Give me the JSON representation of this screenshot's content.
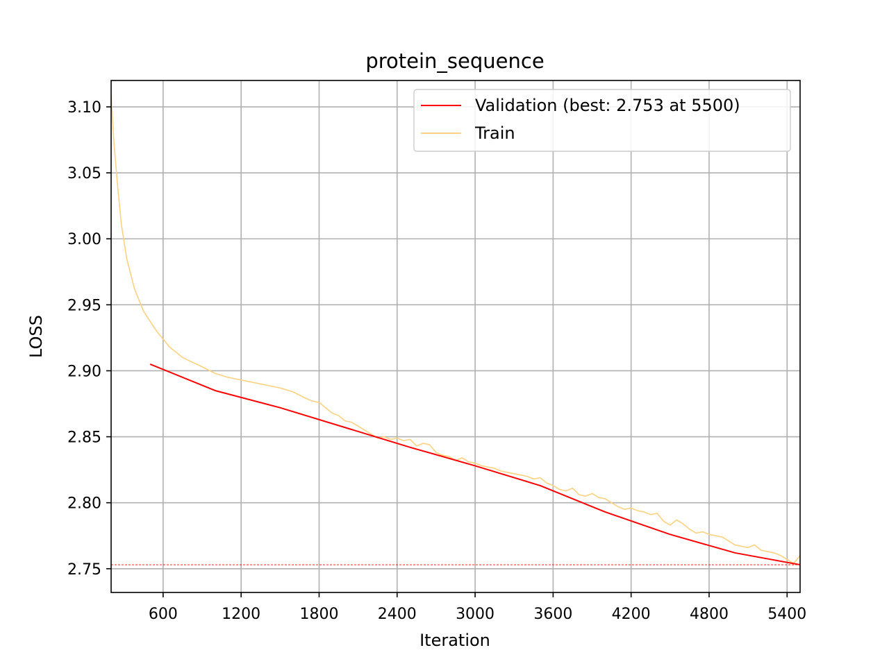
{
  "chart_data": {
    "type": "line",
    "title": "protein_sequence",
    "xlabel": "Iteration",
    "ylabel": "LOSS",
    "xlim": [
      200,
      5500
    ],
    "ylim": [
      2.732,
      3.12
    ],
    "xticks": [
      600,
      1200,
      1800,
      2400,
      3000,
      3600,
      4200,
      4800,
      5400
    ],
    "xtick_labels": [
      "600",
      "1200",
      "1800",
      "2400",
      "3000",
      "3600",
      "4200",
      "4800",
      "5400"
    ],
    "yticks": [
      2.75,
      2.8,
      2.85,
      2.9,
      2.95,
      3.0,
      3.05,
      3.1
    ],
    "ytick_labels": [
      "2.75",
      "2.80",
      "2.85",
      "2.90",
      "2.95",
      "3.00",
      "3.05",
      "3.10"
    ],
    "grid": true,
    "legend_position": "top-right",
    "best_line": {
      "y": 2.753,
      "color": "#ff0000",
      "style": "dashed"
    },
    "series": [
      {
        "name": "Validation (best: 2.753 at 5500)",
        "color": "#ff0000",
        "x": [
          500,
          1000,
          1500,
          2000,
          2500,
          3000,
          3500,
          4000,
          4500,
          5000,
          5500
        ],
        "y": [
          2.905,
          2.885,
          2.872,
          2.857,
          2.842,
          2.828,
          2.813,
          2.793,
          2.776,
          2.762,
          2.753
        ]
      },
      {
        "name": "Train",
        "color": "#fdd17f",
        "x": [
          200,
          220,
          250,
          280,
          320,
          380,
          450,
          550,
          650,
          750,
          900,
          1000,
          1100,
          1200,
          1300,
          1400,
          1500,
          1600,
          1700,
          1750,
          1800,
          1850,
          1900,
          1950,
          2000,
          2050,
          2100,
          2150,
          2200,
          2250,
          2300,
          2350,
          2400,
          2450,
          2500,
          2550,
          2600,
          2650,
          2700,
          2750,
          2800,
          2850,
          2900,
          2950,
          3000,
          3050,
          3100,
          3150,
          3200,
          3250,
          3300,
          3350,
          3400,
          3450,
          3500,
          3550,
          3600,
          3650,
          3700,
          3750,
          3800,
          3850,
          3900,
          3950,
          4000,
          4050,
          4100,
          4150,
          4200,
          4250,
          4300,
          4350,
          4400,
          4450,
          4500,
          4550,
          4600,
          4650,
          4700,
          4750,
          4800,
          4850,
          4900,
          4950,
          5000,
          5050,
          5100,
          5150,
          5200,
          5250,
          5300,
          5350,
          5400,
          5450,
          5500
        ],
        "y": [
          3.11,
          3.075,
          3.04,
          3.01,
          2.985,
          2.962,
          2.945,
          2.93,
          2.918,
          2.91,
          2.903,
          2.898,
          2.895,
          2.893,
          2.891,
          2.889,
          2.887,
          2.884,
          2.879,
          2.877,
          2.876,
          2.872,
          2.868,
          2.866,
          2.862,
          2.861,
          2.858,
          2.855,
          2.852,
          2.849,
          2.85,
          2.848,
          2.849,
          2.847,
          2.848,
          2.843,
          2.845,
          2.844,
          2.838,
          2.836,
          2.835,
          2.832,
          2.834,
          2.831,
          2.83,
          2.828,
          2.827,
          2.826,
          2.824,
          2.823,
          2.822,
          2.821,
          2.82,
          2.818,
          2.819,
          2.815,
          2.813,
          2.81,
          2.809,
          2.811,
          2.806,
          2.805,
          2.807,
          2.804,
          2.803,
          2.8,
          2.797,
          2.795,
          2.796,
          2.794,
          2.793,
          2.791,
          2.792,
          2.786,
          2.783,
          2.787,
          2.784,
          2.78,
          2.777,
          2.778,
          2.776,
          2.775,
          2.774,
          2.771,
          2.768,
          2.767,
          2.766,
          2.768,
          2.764,
          2.763,
          2.762,
          2.76,
          2.757,
          2.754,
          2.76
        ]
      }
    ]
  }
}
